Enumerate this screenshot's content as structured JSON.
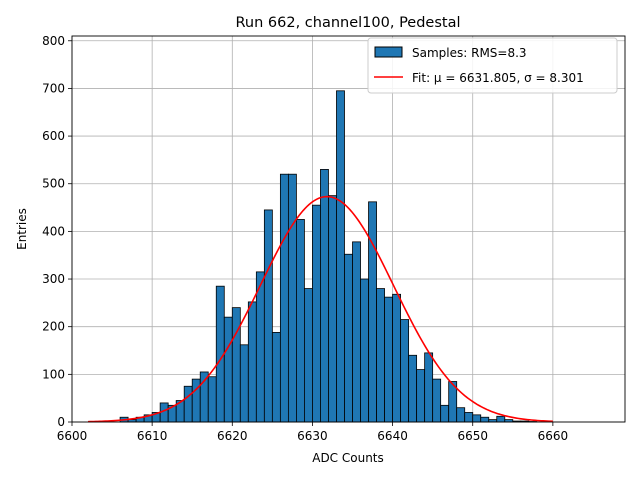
{
  "chart_data": {
    "type": "bar",
    "title": "Run 662, channel100, Pedestal",
    "xlabel": "ADC Counts",
    "ylabel": "Entries",
    "xlim": [
      6600.0,
      6669.0
    ],
    "ylim": [
      0,
      810
    ],
    "xticks": [
      6600,
      6610,
      6620,
      6630,
      6640,
      6650,
      6660
    ],
    "yticks": [
      0,
      100,
      200,
      300,
      400,
      500,
      600,
      700,
      800
    ],
    "grid": true,
    "legend": "upper right",
    "bar_color": "#1f77b4",
    "fit_color": "#ff0000",
    "bin_width": 1,
    "histogram": {
      "name": "Samples: RMS=8.3",
      "bin_starts": [
        6606,
        6607,
        6608,
        6609,
        6610,
        6611,
        6612,
        6613,
        6614,
        6615,
        6616,
        6617,
        6618,
        6619,
        6620,
        6621,
        6622,
        6623,
        6624,
        6625,
        6626,
        6627,
        6628,
        6629,
        6630,
        6631,
        6632,
        6633,
        6634,
        6635,
        6636,
        6637,
        6638,
        6639,
        6640,
        6641,
        6642,
        6643,
        6644,
        6645,
        6646,
        6647,
        6648,
        6649,
        6650,
        6651,
        6652,
        6653,
        6654,
        6655,
        6656,
        6657
      ],
      "values": [
        10,
        5,
        10,
        15,
        20,
        40,
        35,
        45,
        75,
        90,
        105,
        95,
        285,
        220,
        240,
        162,
        252,
        315,
        445,
        188,
        520,
        520,
        425,
        280,
        455,
        530,
        475,
        695,
        352,
        378,
        300,
        462,
        280,
        262,
        268,
        215,
        140,
        110,
        145,
        90,
        35,
        85,
        30,
        20,
        15,
        10,
        5,
        12,
        5,
        2,
        2,
        1
      ]
    },
    "fit": {
      "name": "Fit: μ = 6631.805, σ = 8.301",
      "mu": 6631.805,
      "sigma": 8.301,
      "amplitude": 473,
      "x_range": [
        6602,
        6660
      ]
    }
  }
}
